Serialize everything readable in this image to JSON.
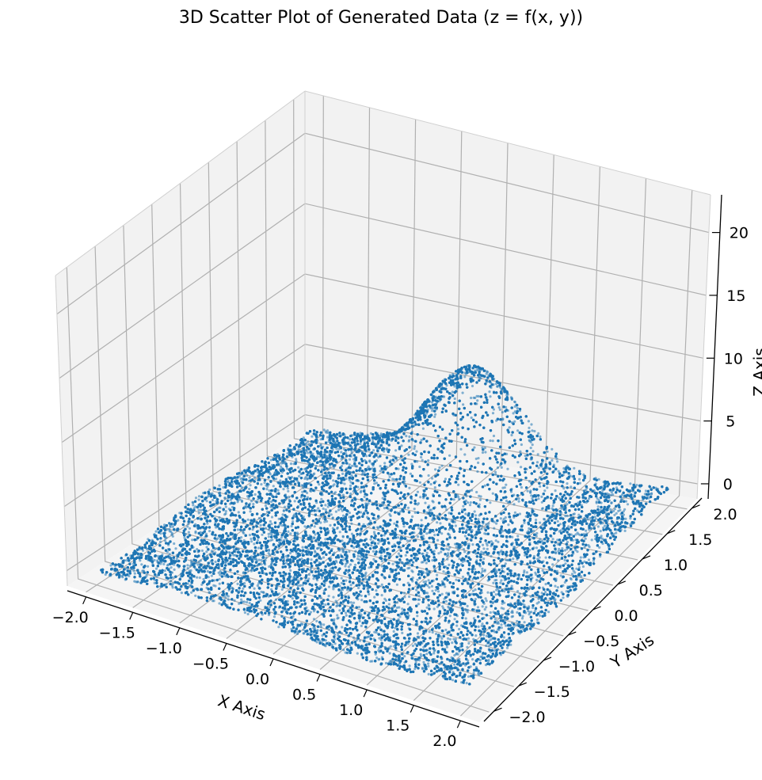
{
  "chart_data": {
    "type": "scatter",
    "title": "3D Scatter Plot of Generated Data (z = f(x, y))",
    "xlabel": "X Axis",
    "ylabel": "Y Axis",
    "zlabel": "Z Axis",
    "xlim": [
      -2.2,
      2.2
    ],
    "ylim": [
      -2.2,
      2.2
    ],
    "zlim": [
      -1.2,
      23.0
    ],
    "x_ticks": [
      -2.0,
      -1.5,
      -1.0,
      -0.5,
      0.0,
      0.5,
      1.0,
      1.5,
      2.0
    ],
    "y_ticks": [
      -2.0,
      -1.5,
      -1.0,
      -0.5,
      0.0,
      0.5,
      1.0,
      1.5,
      2.0
    ],
    "z_ticks": [
      0,
      5,
      10,
      15,
      20
    ],
    "x_tick_labels": [
      "−2.0",
      "−1.5",
      "−1.0",
      "−0.5",
      "0.0",
      "0.5",
      "1.0",
      "1.5",
      "2.0"
    ],
    "y_tick_labels": [
      "−2.0",
      "−1.5",
      "−1.0",
      "−0.5",
      "0.0",
      "0.5",
      "1.0",
      "1.5",
      "2.0"
    ],
    "z_tick_labels": [
      "0",
      "5",
      "10",
      "15",
      "20"
    ],
    "grid": true,
    "marker_color": "#1f77b4",
    "series": [
      {
        "points_x_range": [
          -2.0,
          2.0
        ],
        "points_y_range": [
          -2.0,
          2.0
        ],
        "z_range": [
          -0.6,
          8.6
        ]
      }
    ]
  }
}
